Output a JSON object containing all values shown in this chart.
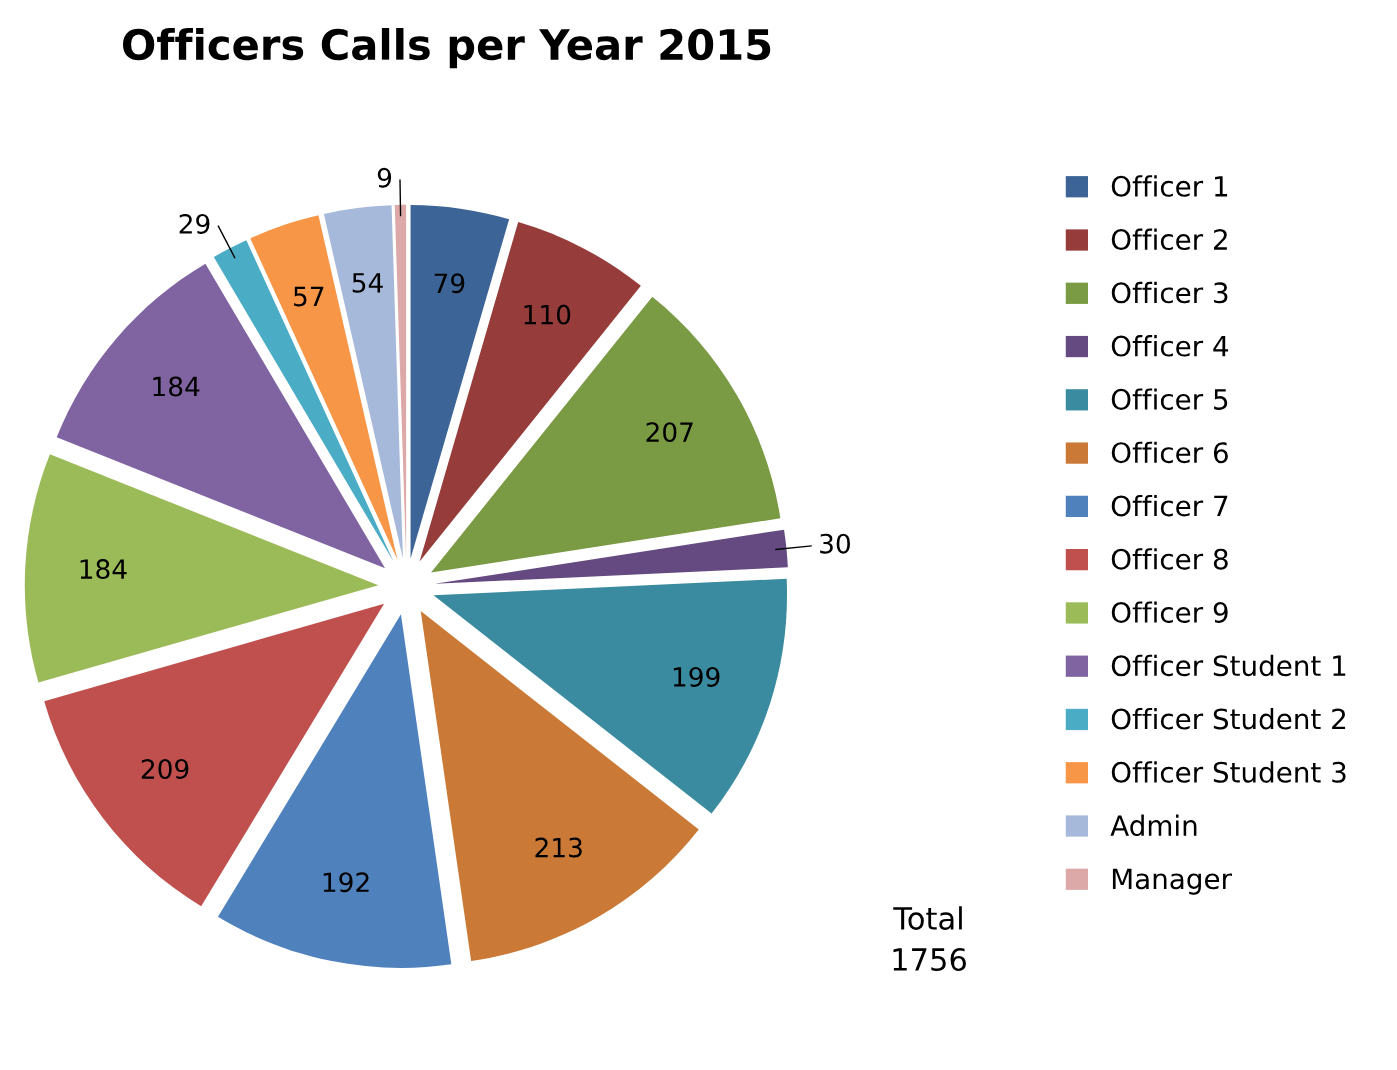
{
  "chart_data": {
    "type": "pie",
    "title": "Officers Calls per Year 2015",
    "categories": [
      "Officer 1",
      "Officer 2",
      "Officer 3",
      "Officer 4",
      "Officer 5",
      "Officer 6",
      "Officer 7",
      "Officer 8",
      "Officer 9",
      "Officer Student 1",
      "Officer Student 2",
      "Officer Student 3",
      "Admin",
      "Manager"
    ],
    "values": [
      79,
      110,
      207,
      30,
      199,
      213,
      192,
      209,
      184,
      184,
      29,
      57,
      54,
      9
    ],
    "colors": [
      "#3c6496",
      "#963c3a",
      "#7a9a44",
      "#654a81",
      "#3a8ba0",
      "#ca7a36",
      "#4f81bd",
      "#c0504d",
      "#9bbb59",
      "#8064a2",
      "#4bacc6",
      "#f79646",
      "#a7b9db",
      "#dda9a8"
    ],
    "data_labels": true,
    "legend": "right",
    "annotations": [
      "Total\n1756"
    ]
  }
}
